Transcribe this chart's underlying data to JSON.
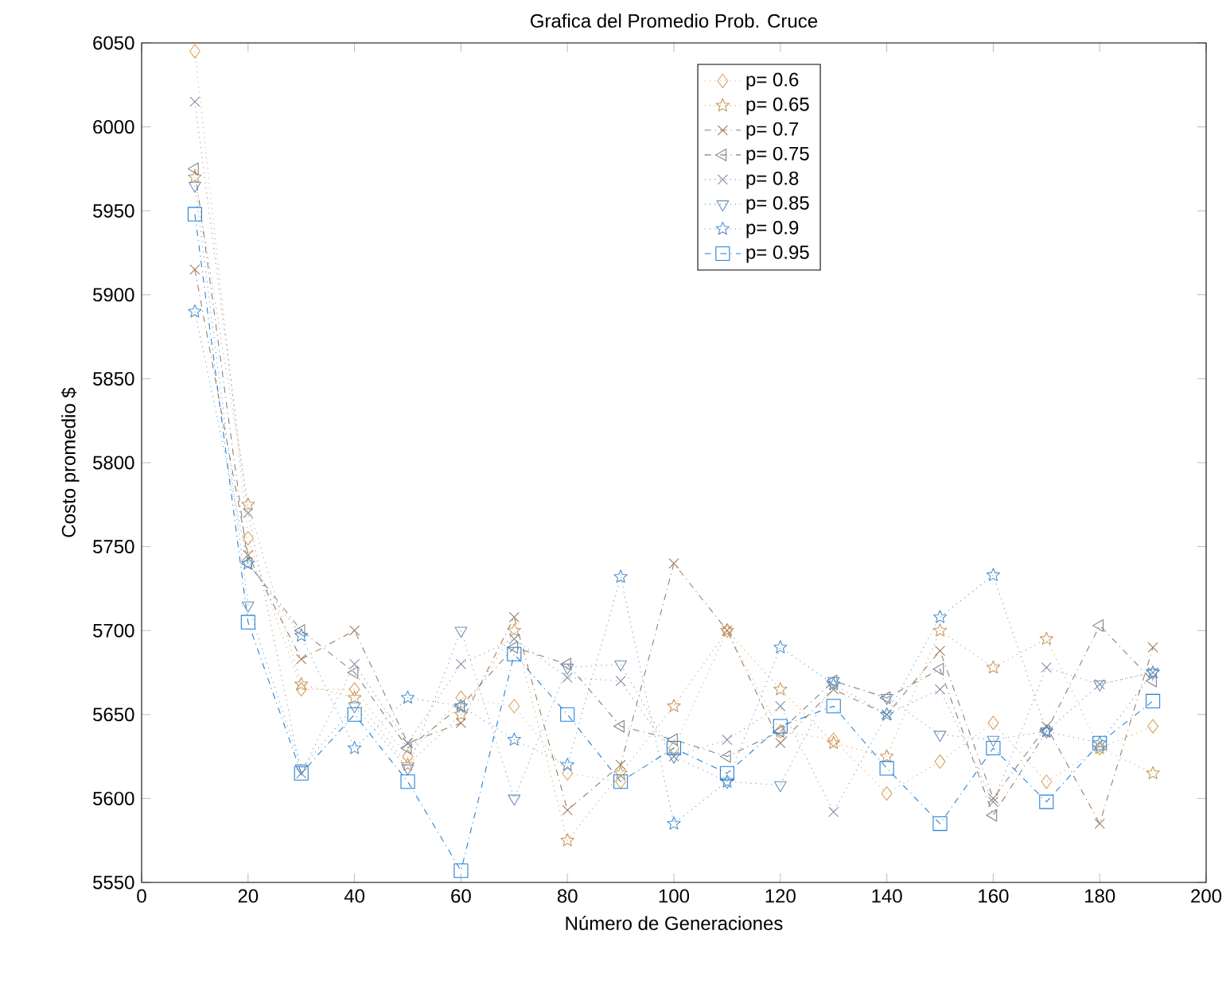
{
  "chart_data": {
    "type": "line",
    "title": "Grafica del Promedio Prob. Cruce",
    "xlabel": "Número de Generaciones",
    "ylabel": "Costo promedio $",
    "x": [
      10,
      20,
      30,
      40,
      50,
      60,
      70,
      80,
      90,
      100,
      110,
      120,
      130,
      140,
      150,
      160,
      170,
      180,
      190
    ],
    "series": [
      {
        "name": "p= 0.6",
        "color": "#d9a05b",
        "marker": "diamond",
        "line_style": "dotted",
        "values": [
          6045,
          5755,
          5665,
          5665,
          5625,
          5660,
          5655,
          5615,
          5610,
          5630,
          5700,
          5640,
          5635,
          5603,
          5622,
          5645,
          5610,
          5630,
          5643
        ]
      },
      {
        "name": "p= 0.65",
        "color": "#c8955a",
        "marker": "star",
        "line_style": "dotted",
        "values": [
          5970,
          5775,
          5668,
          5660,
          5620,
          5650,
          5700,
          5575,
          5615,
          5655,
          5700,
          5665,
          5633,
          5625,
          5700,
          5678,
          5695,
          5630,
          5615
        ]
      },
      {
        "name": "p= 0.7",
        "color": "#9c7a5a",
        "marker": "cross",
        "line_style": "dashdot",
        "values": [
          5915,
          5745,
          5683,
          5700,
          5633,
          5645,
          5708,
          5593,
          5620,
          5740,
          5700,
          5633,
          5665,
          5650,
          5688,
          5600,
          5643,
          5585,
          5690
        ]
      },
      {
        "name": "p= 0.75",
        "color": "#808080",
        "marker": "triangle-left",
        "line_style": "dashdot",
        "values": [
          5975,
          5740,
          5700,
          5675,
          5630,
          5655,
          5690,
          5680,
          5643,
          5635,
          5625,
          5640,
          5670,
          5660,
          5677,
          5590,
          5640,
          5703,
          5670
        ]
      },
      {
        "name": "p= 0.8",
        "color": "#7d8ca3",
        "marker": "cross",
        "line_style": "dotted",
        "values": [
          6015,
          5770,
          5615,
          5680,
          5633,
          5680,
          5695,
          5672,
          5670,
          5625,
          5635,
          5655,
          5592,
          5650,
          5665,
          5598,
          5678,
          5668,
          5675
        ]
      },
      {
        "name": "p= 0.85",
        "color": "#6e8fb8",
        "marker": "triangle-down",
        "line_style": "dotted",
        "values": [
          5965,
          5715,
          5618,
          5655,
          5618,
          5700,
          5600,
          5678,
          5680,
          5625,
          5610,
          5608,
          5670,
          5660,
          5638,
          5635,
          5640,
          5668,
          5675
        ]
      },
      {
        "name": "p= 0.9",
        "color": "#4a90d0",
        "marker": "star",
        "line_style": "dotted",
        "values": [
          5890,
          5740,
          5697,
          5630,
          5660,
          5655,
          5635,
          5620,
          5732,
          5585,
          5610,
          5690,
          5668,
          5650,
          5708,
          5733,
          5640,
          5633,
          5675
        ]
      },
      {
        "name": "p= 0.95",
        "color": "#1f7fd8",
        "marker": "square",
        "line_style": "dashdot",
        "values": [
          5948,
          5705,
          5615,
          5650,
          5610,
          5557,
          5686,
          5650,
          5610,
          5630,
          5615,
          5643,
          5655,
          5618,
          5585,
          5630,
          5598,
          5633,
          5658
        ]
      }
    ],
    "xlim": [
      0,
      200
    ],
    "xticks": [
      0,
      20,
      40,
      60,
      80,
      100,
      120,
      140,
      160,
      180,
      200
    ],
    "ylim": [
      5550,
      6050
    ],
    "yticks": [
      5550,
      5600,
      5650,
      5700,
      5750,
      5800,
      5850,
      5900,
      5950,
      6000,
      6050
    ],
    "grid": false,
    "legend": "top"
  }
}
